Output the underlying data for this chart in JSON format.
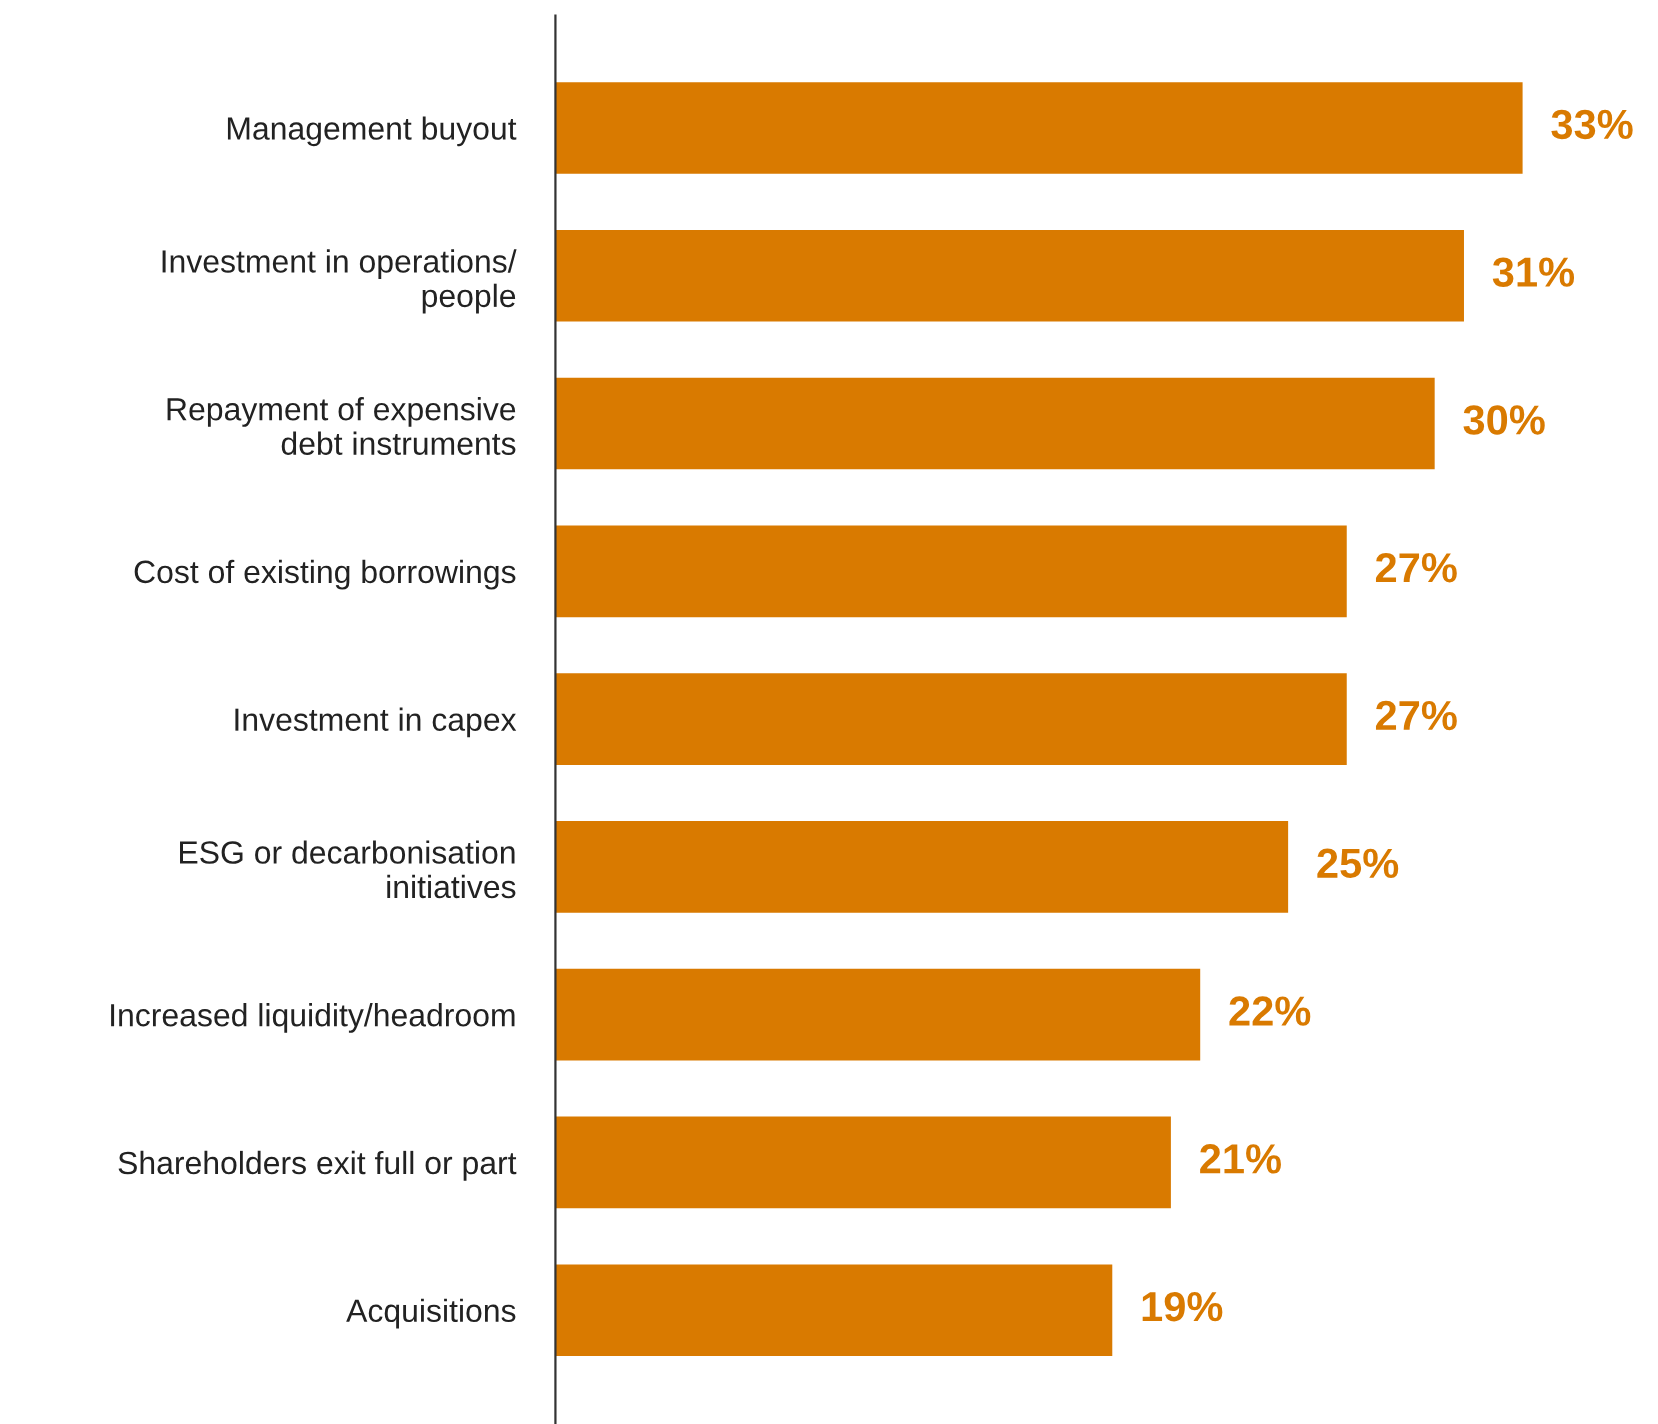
{
  "chart_data": {
    "type": "bar",
    "orientation": "horizontal",
    "categories": [
      "Management buyout",
      "Investment in operations/\npeople",
      "Repayment of expensive\ndebt instruments",
      "Cost of existing borrowings",
      "Investment in capex",
      "ESG or decarbonisation\ninitiatives",
      "Increased liquidity/headroom",
      "Shareholders exit full or part",
      "Acquisitions"
    ],
    "values": [
      33,
      31,
      30,
      27,
      27,
      25,
      22,
      21,
      19
    ],
    "value_labels": [
      "33%",
      "31%",
      "30%",
      "27%",
      "27%",
      "25%",
      "22%",
      "21%",
      "19%"
    ],
    "color": "#d97a00",
    "grid": false,
    "legend": false
  }
}
